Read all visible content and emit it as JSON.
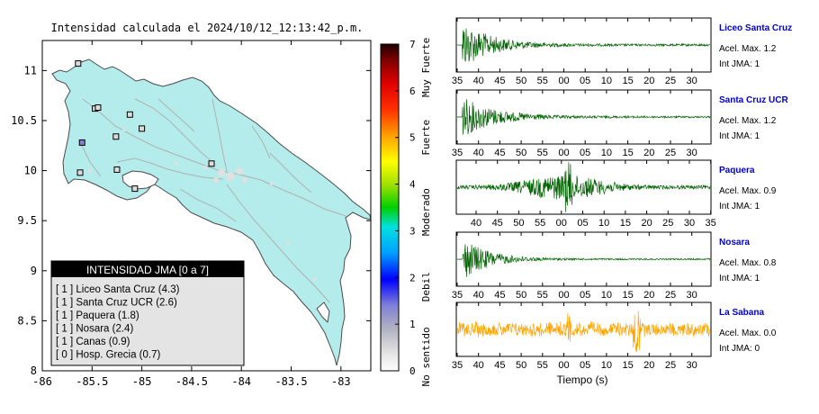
{
  "map": {
    "title": "Intensidad calculada el 2024/10/12_12:13:42_p.m.",
    "x_ticks": [
      "-86",
      "-85.5",
      "-85",
      "-84.5",
      "-84",
      "-83.5",
      "-83"
    ],
    "y_ticks": [
      "11",
      "10.5",
      "10",
      "9.5",
      "9",
      "8.5",
      "8"
    ],
    "xlim": [
      -86,
      -82.7
    ],
    "ylim": [
      8,
      11.3
    ],
    "land_color": "#b4ecec",
    "road_color": "#b0b0b0",
    "colorbar": {
      "ticks": [
        "7",
        "6",
        "5",
        "4",
        "3",
        "2",
        "1",
        "0"
      ],
      "range": [
        0,
        7
      ],
      "category_labels": [
        "Muy Fuerte",
        "Fuerte",
        "Moderado",
        "Debil",
        "No sentido"
      ]
    },
    "legend": {
      "title": "INTENSIDAD JMA [0 a 7]",
      "items": [
        "[ 1 ] Liceo Santa Cruz (4.3)",
        "[ 1 ] Santa Cruz UCR (2.6)",
        "[ 1 ] Paquera (1.8)",
        "[ 1 ] Nosara (2.4)",
        "[ 1 ] Canas (0.9)",
        "[ 0 ] Hosp. Grecia (0.7)"
      ]
    },
    "stations": [
      {
        "lon": -85.64,
        "lat": 11.07,
        "color": "#dcdcdc"
      },
      {
        "lon": -85.47,
        "lat": 10.62,
        "color": "#dcdcdc"
      },
      {
        "lon": -85.44,
        "lat": 10.63,
        "color": "#dcdcdc"
      },
      {
        "lon": -85.12,
        "lat": 10.56,
        "color": "#dcdcdc"
      },
      {
        "lon": -85.26,
        "lat": 10.34,
        "color": "#dcdcdc"
      },
      {
        "lon": -85.0,
        "lat": 10.42,
        "color": "#dcdcdc"
      },
      {
        "lon": -85.6,
        "lat": 10.28,
        "color": "#8080d8"
      },
      {
        "lon": -85.62,
        "lat": 9.98,
        "color": "#dcdcdc"
      },
      {
        "lon": -85.25,
        "lat": 10.01,
        "color": "#dcdcdc"
      },
      {
        "lon": -85.07,
        "lat": 9.82,
        "color": "#dcdcdc"
      },
      {
        "lon": -84.3,
        "lat": 10.07,
        "color": "#dcdcdc"
      }
    ]
  },
  "traces": {
    "xlabel": "Tiempo (s)",
    "stations": [
      {
        "name": "Liceo Santa Cruz",
        "accel": "Acel. Max. 1.2",
        "int": "Int JMA: 1",
        "color": "#006400",
        "ticks": [
          "35",
          "40",
          "45",
          "50",
          "55",
          "00",
          "05",
          "10",
          "15",
          "20",
          "25",
          "30"
        ],
        "tick_start": 35
      },
      {
        "name": "Santa Cruz UCR",
        "accel": "Acel. Max. 1.2",
        "int": "Int JMA: 1",
        "color": "#006400",
        "ticks": [
          "35",
          "40",
          "45",
          "50",
          "55",
          "00",
          "05",
          "10",
          "15",
          "20",
          "25",
          "30"
        ],
        "tick_start": 35
      },
      {
        "name": "Paquera",
        "accel": "Acel. Max. 0.9",
        "int": "Int JMA: 1",
        "color": "#006400",
        "ticks": [
          "40",
          "45",
          "50",
          "55",
          "00",
          "05",
          "10",
          "15",
          "20",
          "25",
          "30",
          "35"
        ],
        "tick_start": 40
      },
      {
        "name": "Nosara",
        "accel": "Acel. Max. 0.8",
        "int": "Int JMA: 1",
        "color": "#006400",
        "ticks": [
          "35",
          "40",
          "45",
          "50",
          "55",
          "00",
          "05",
          "10",
          "15",
          "20",
          "25",
          "30"
        ],
        "tick_start": 35
      },
      {
        "name": "La Sabana",
        "accel": "Acel. Max. 0.0",
        "int": "Int JMA: 0",
        "color": "#ffa500",
        "ticks": [
          "35",
          "40",
          "45",
          "50",
          "55",
          "00",
          "05",
          "10",
          "15",
          "20",
          "25",
          "30"
        ],
        "tick_start": 35
      }
    ]
  },
  "colors": {
    "station_name": "#0000cc"
  }
}
